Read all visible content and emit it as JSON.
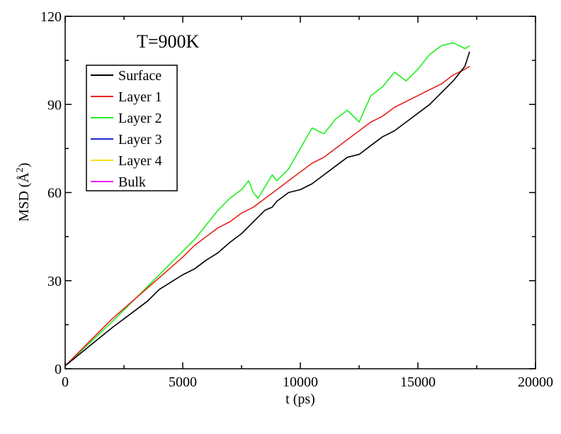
{
  "chart_data": {
    "type": "line",
    "annotation": "T=900K",
    "xlabel": "t (ps)",
    "ylabel_parts": {
      "prefix": "MSD (",
      "unit": "Å",
      "sup": "2",
      "suffix": ")"
    },
    "xlim": [
      0,
      20000
    ],
    "ylim": [
      0,
      120
    ],
    "x_ticks": [
      0,
      5000,
      10000,
      15000,
      20000
    ],
    "y_ticks": [
      0,
      30,
      60,
      90,
      120
    ],
    "grid": false,
    "legend_position": "upper-left",
    "series": [
      {
        "name": "Surface",
        "color": "#000000",
        "x": [
          0,
          1000,
          2000,
          3000,
          3500,
          4000,
          4500,
          5000,
          5500,
          6000,
          6500,
          7000,
          7500,
          8000,
          8500,
          8800,
          9000,
          9500,
          10000,
          10500,
          11000,
          11500,
          12000,
          12500,
          13000,
          13500,
          14000,
          14500,
          15000,
          15500,
          16000,
          16500,
          17000,
          17200
        ],
        "y": [
          1,
          7.5,
          14,
          20,
          23,
          27,
          29.5,
          32,
          34,
          37,
          39.5,
          43,
          46,
          50,
          54,
          55,
          57,
          60,
          61,
          63,
          66,
          69,
          72,
          73,
          76,
          79,
          81,
          84,
          87,
          90,
          94,
          98,
          103,
          108
        ]
      },
      {
        "name": "Layer 1",
        "color": "#e8241c",
        "x": [
          0,
          1000,
          2000,
          3000,
          4000,
          5000,
          5500,
          6000,
          6500,
          7000,
          7500,
          8000,
          8500,
          9000,
          9500,
          10000,
          10500,
          11000,
          11500,
          12000,
          12500,
          13000,
          13500,
          14000,
          14500,
          15000,
          15500,
          16000,
          16500,
          17000,
          17200
        ],
        "y": [
          1,
          9,
          17,
          24,
          31,
          38,
          42,
          45,
          48,
          50,
          53,
          55,
          58,
          61,
          64,
          67,
          70,
          72,
          75,
          78,
          81,
          84,
          86,
          89,
          91,
          93,
          95,
          97,
          100,
          102,
          103
        ]
      },
      {
        "name": "Layer 2",
        "color": "#22ee22",
        "x": [
          0,
          1000,
          2000,
          3000,
          4000,
          5000,
          5500,
          6000,
          6500,
          7000,
          7500,
          7800,
          8000,
          8200,
          8500,
          8800,
          9000,
          9500,
          10000,
          10500,
          11000,
          11500,
          12000,
          12500,
          13000,
          13500,
          14000,
          14500,
          15000,
          15500,
          16000,
          16500,
          17000,
          17200
        ],
        "y": [
          1,
          8.5,
          16,
          24,
          32,
          40,
          44,
          49,
          54,
          58,
          61,
          64,
          60,
          58,
          62,
          66,
          64,
          68,
          75,
          82,
          80,
          85,
          88,
          84,
          93,
          96,
          101,
          98,
          102,
          107,
          110,
          111,
          109,
          110
        ]
      },
      {
        "name": "Layer 3",
        "color": "#1c2bd4",
        "x": [],
        "y": []
      },
      {
        "name": "Layer 4",
        "color": "#f5e11a",
        "x": [],
        "y": []
      },
      {
        "name": "Bulk",
        "color": "#ee22ee",
        "x": [],
        "y": []
      }
    ]
  }
}
